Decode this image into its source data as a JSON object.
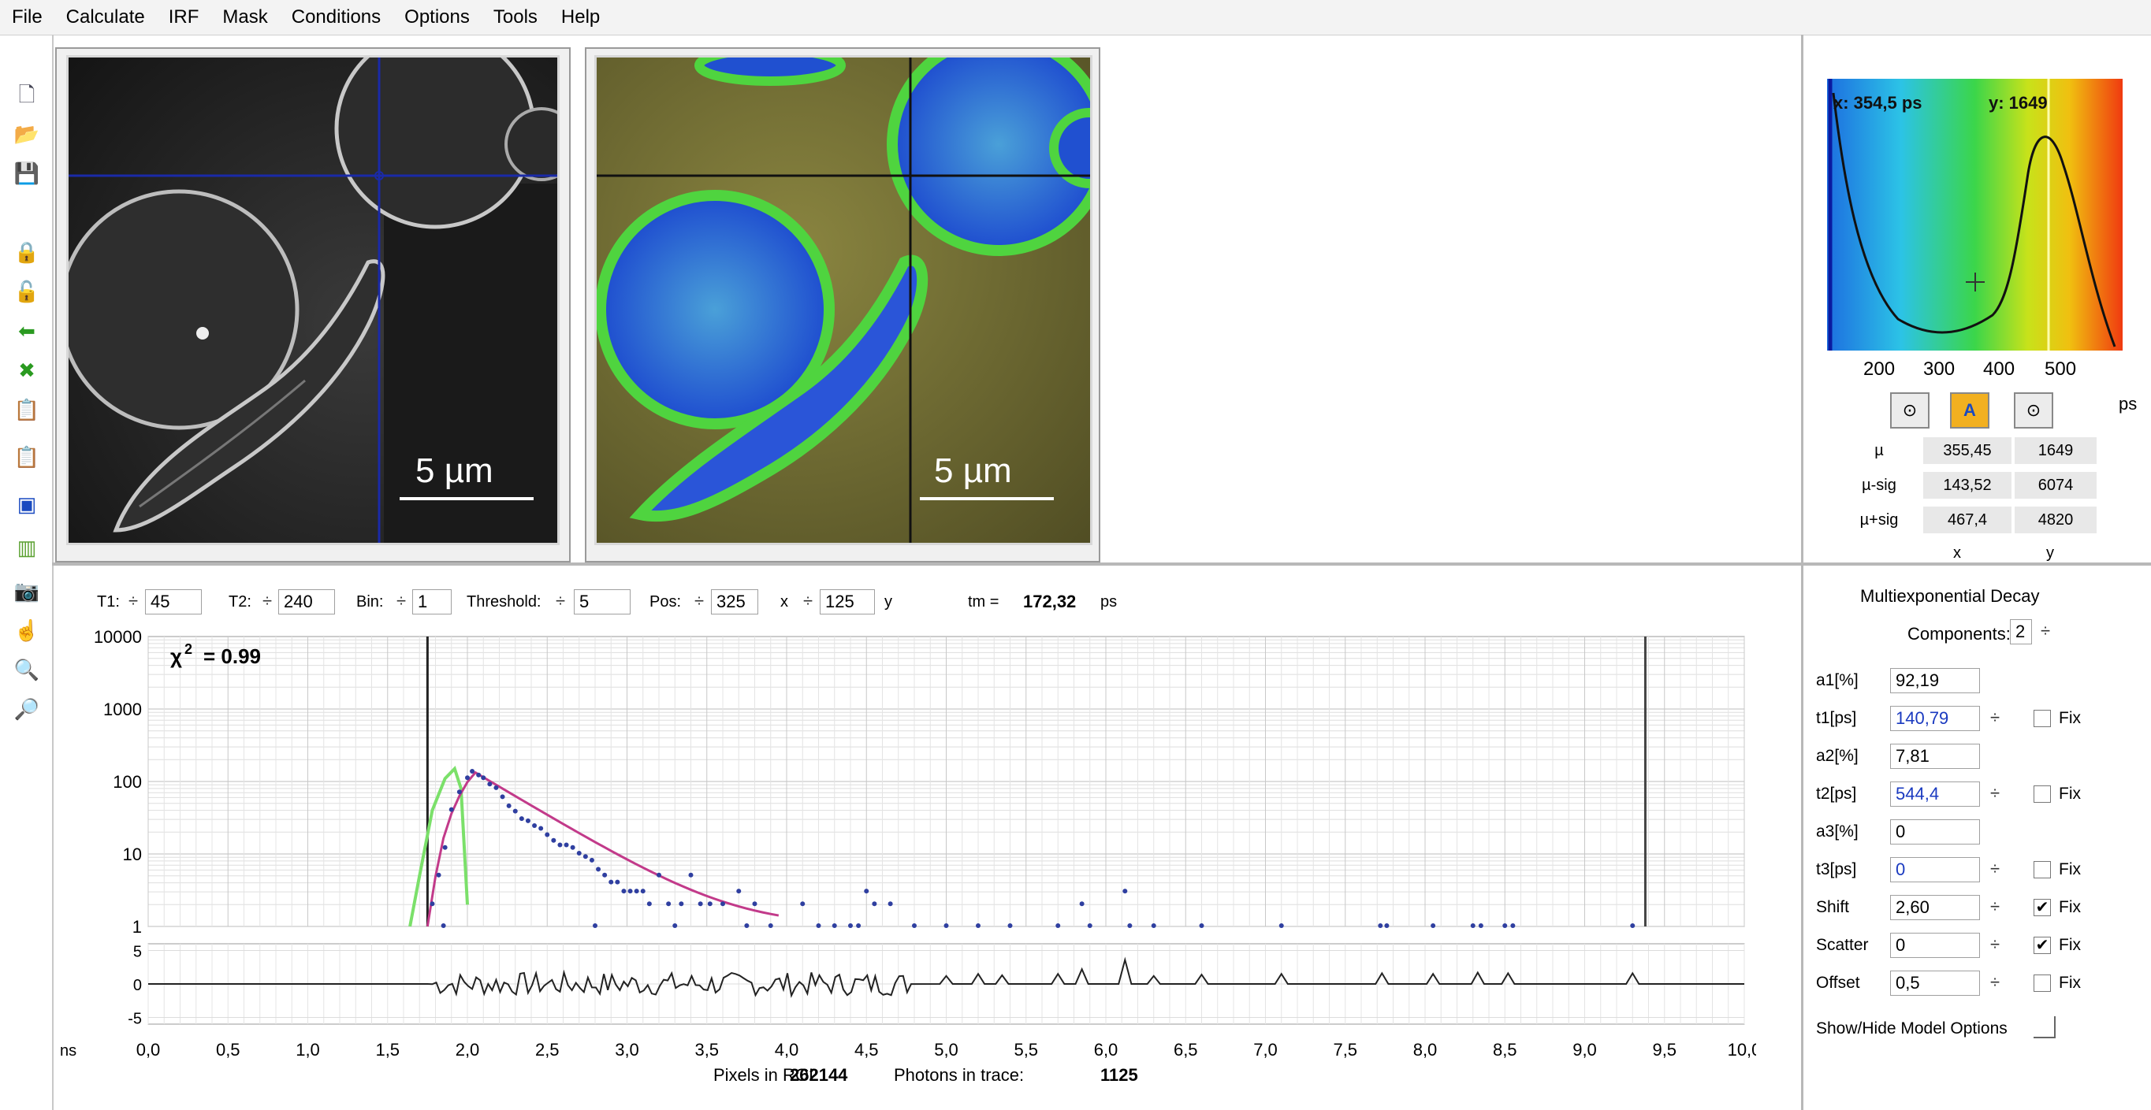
{
  "menu": [
    "File",
    "Calculate",
    "IRF",
    "Mask",
    "Conditions",
    "Options",
    "Tools",
    "Help"
  ],
  "toolbar_icons": [
    "new-file-icon",
    "open-folder-icon",
    "save-icon",
    "lock-icon",
    "unlock-icon",
    "arrow-left-icon",
    "arrow-cross-icon",
    "clipboard-copy-icon",
    "clipboard-paste-icon",
    "select-region-icon",
    "column-select-icon",
    "camera-icon",
    "pointer-hand-icon",
    "zoom-in-icon",
    "zoom-out-icon"
  ],
  "images": {
    "left_scale": "5 µm",
    "right_scale": "5 µm"
  },
  "histogram": {
    "x_readout": "x: 354,5  ps",
    "y_readout": "y: 1649",
    "x_ticks": [
      "200",
      "300",
      "400",
      "500"
    ],
    "x_unit": "ps",
    "stats_rows": [
      {
        "label": "µ",
        "x": "355,45",
        "y": "1649"
      },
      {
        "label": "µ-sig",
        "x": "143,52",
        "y": "6074"
      },
      {
        "label": "µ+sig",
        "x": "467,4",
        "y": "4820"
      }
    ],
    "col_x": "x",
    "col_y": "y"
  },
  "controls": {
    "t1_label": "T1:",
    "t1_value": "45",
    "t2_label": "T2:",
    "t2_value": "240",
    "bin_label": "Bin:",
    "bin_value": "1",
    "threshold_label": "Threshold:",
    "threshold_value": "5",
    "pos_label": "Pos:",
    "pos_x": "325",
    "pos_x_unit": "x",
    "pos_y": "125",
    "pos_y_unit": "y",
    "tm_label": "tm =",
    "tm_value": "172,32",
    "tm_unit": "ps",
    "spin_symbol": "÷"
  },
  "decay_chart": {
    "chi2_label": "χ",
    "chi2_value": "= 0.99",
    "y_ticks": [
      "10000",
      "1000",
      "100",
      "10",
      "1"
    ],
    "resid_ticks": [
      "5",
      "0",
      "-5"
    ],
    "x_ticks": [
      "0,0",
      "0,5",
      "1,0",
      "1,5",
      "2,0",
      "2,5",
      "3,0",
      "3,5",
      "4,0",
      "4,5",
      "5,0",
      "5,5",
      "6,0",
      "6,5",
      "7,0",
      "7,5",
      "8,0",
      "8,5",
      "9,0",
      "9,5",
      "10,0"
    ],
    "x_unit": "ns",
    "pixels_label": "Pixels in ROI:",
    "pixels_value": "262144",
    "photons_label": "Photons in trace:",
    "photons_value": "1125"
  },
  "model": {
    "title": "Multiexponential Decay",
    "components_label": "Components:",
    "components_value": "2",
    "fix_label": "Fix",
    "rows": [
      {
        "label": "a1[%]",
        "value": "92,19",
        "spin": false,
        "fix": null,
        "blue": false
      },
      {
        "label": "t1[ps]",
        "value": "140,79",
        "spin": true,
        "fix": false,
        "blue": true
      },
      {
        "label": "a2[%]",
        "value": "7,81",
        "spin": false,
        "fix": null,
        "blue": false
      },
      {
        "label": "t2[ps]",
        "value": "544,4",
        "spin": true,
        "fix": false,
        "blue": true
      },
      {
        "label": "a3[%]",
        "value": "0",
        "spin": false,
        "fix": null,
        "blue": false
      },
      {
        "label": "t3[ps]",
        "value": "0",
        "spin": true,
        "fix": false,
        "blue": true
      },
      {
        "label": "Shift",
        "value": "2,60",
        "spin": true,
        "fix": true,
        "blue": false
      },
      {
        "label": "Scatter",
        "value": "0",
        "spin": true,
        "fix": true,
        "blue": false
      },
      {
        "label": "Offset",
        "value": "0,5",
        "spin": true,
        "fix": false,
        "blue": false
      }
    ],
    "show_hide_label": "Show/Hide Model Options",
    "check_mark": "✔"
  }
}
